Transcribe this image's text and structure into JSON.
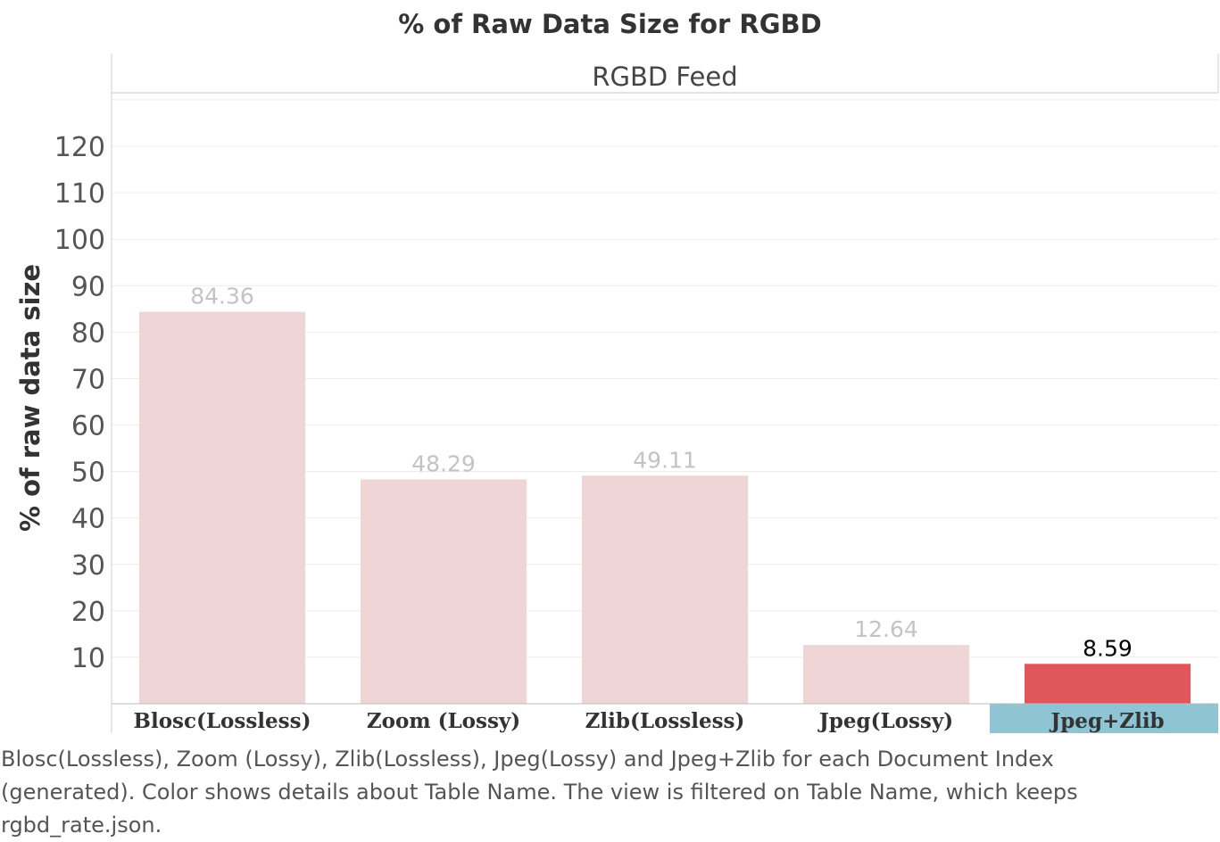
{
  "title": "% of Raw Data Size for RGBD",
  "panel_header": "RGBD Feed",
  "caption": "Blosc(Lossless), Zoom (Lossy), Zlib(Lossless), Jpeg(Lossy) and Jpeg+Zlib for each Document Index (generated).  Color shows details about Table Name. The view is filtered on Table Name, which keeps rgbd_rate.json.",
  "colors": {
    "bar": "#f0d5d7",
    "highlight_bar": "#e0575b",
    "highlight_category_bg": "#8ec4d4",
    "data_label": "#c3c3c3",
    "highlight_data_label": "#000000"
  },
  "chart_data": {
    "type": "bar",
    "title": "% of Raw Data Size for RGBD",
    "panel": "RGBD Feed",
    "ylabel": "% of raw data size",
    "xlabel": "",
    "categories": [
      "Blosc(Lossless)",
      "Zoom (Lossy)",
      "Zlib(Lossless)",
      "Jpeg(Lossy)",
      "Jpeg+Zlib"
    ],
    "values": [
      84.36,
      48.29,
      49.11,
      12.64,
      8.59
    ],
    "value_labels": [
      "84.36",
      "48.29",
      "49.11",
      "12.64",
      "8.59"
    ],
    "highlighted": "Jpeg+Zlib",
    "ylim": [
      0,
      130
    ],
    "yticks": [
      10,
      20,
      30,
      40,
      50,
      60,
      70,
      80,
      90,
      100,
      110,
      120
    ],
    "grid": true,
    "legend": "none"
  }
}
